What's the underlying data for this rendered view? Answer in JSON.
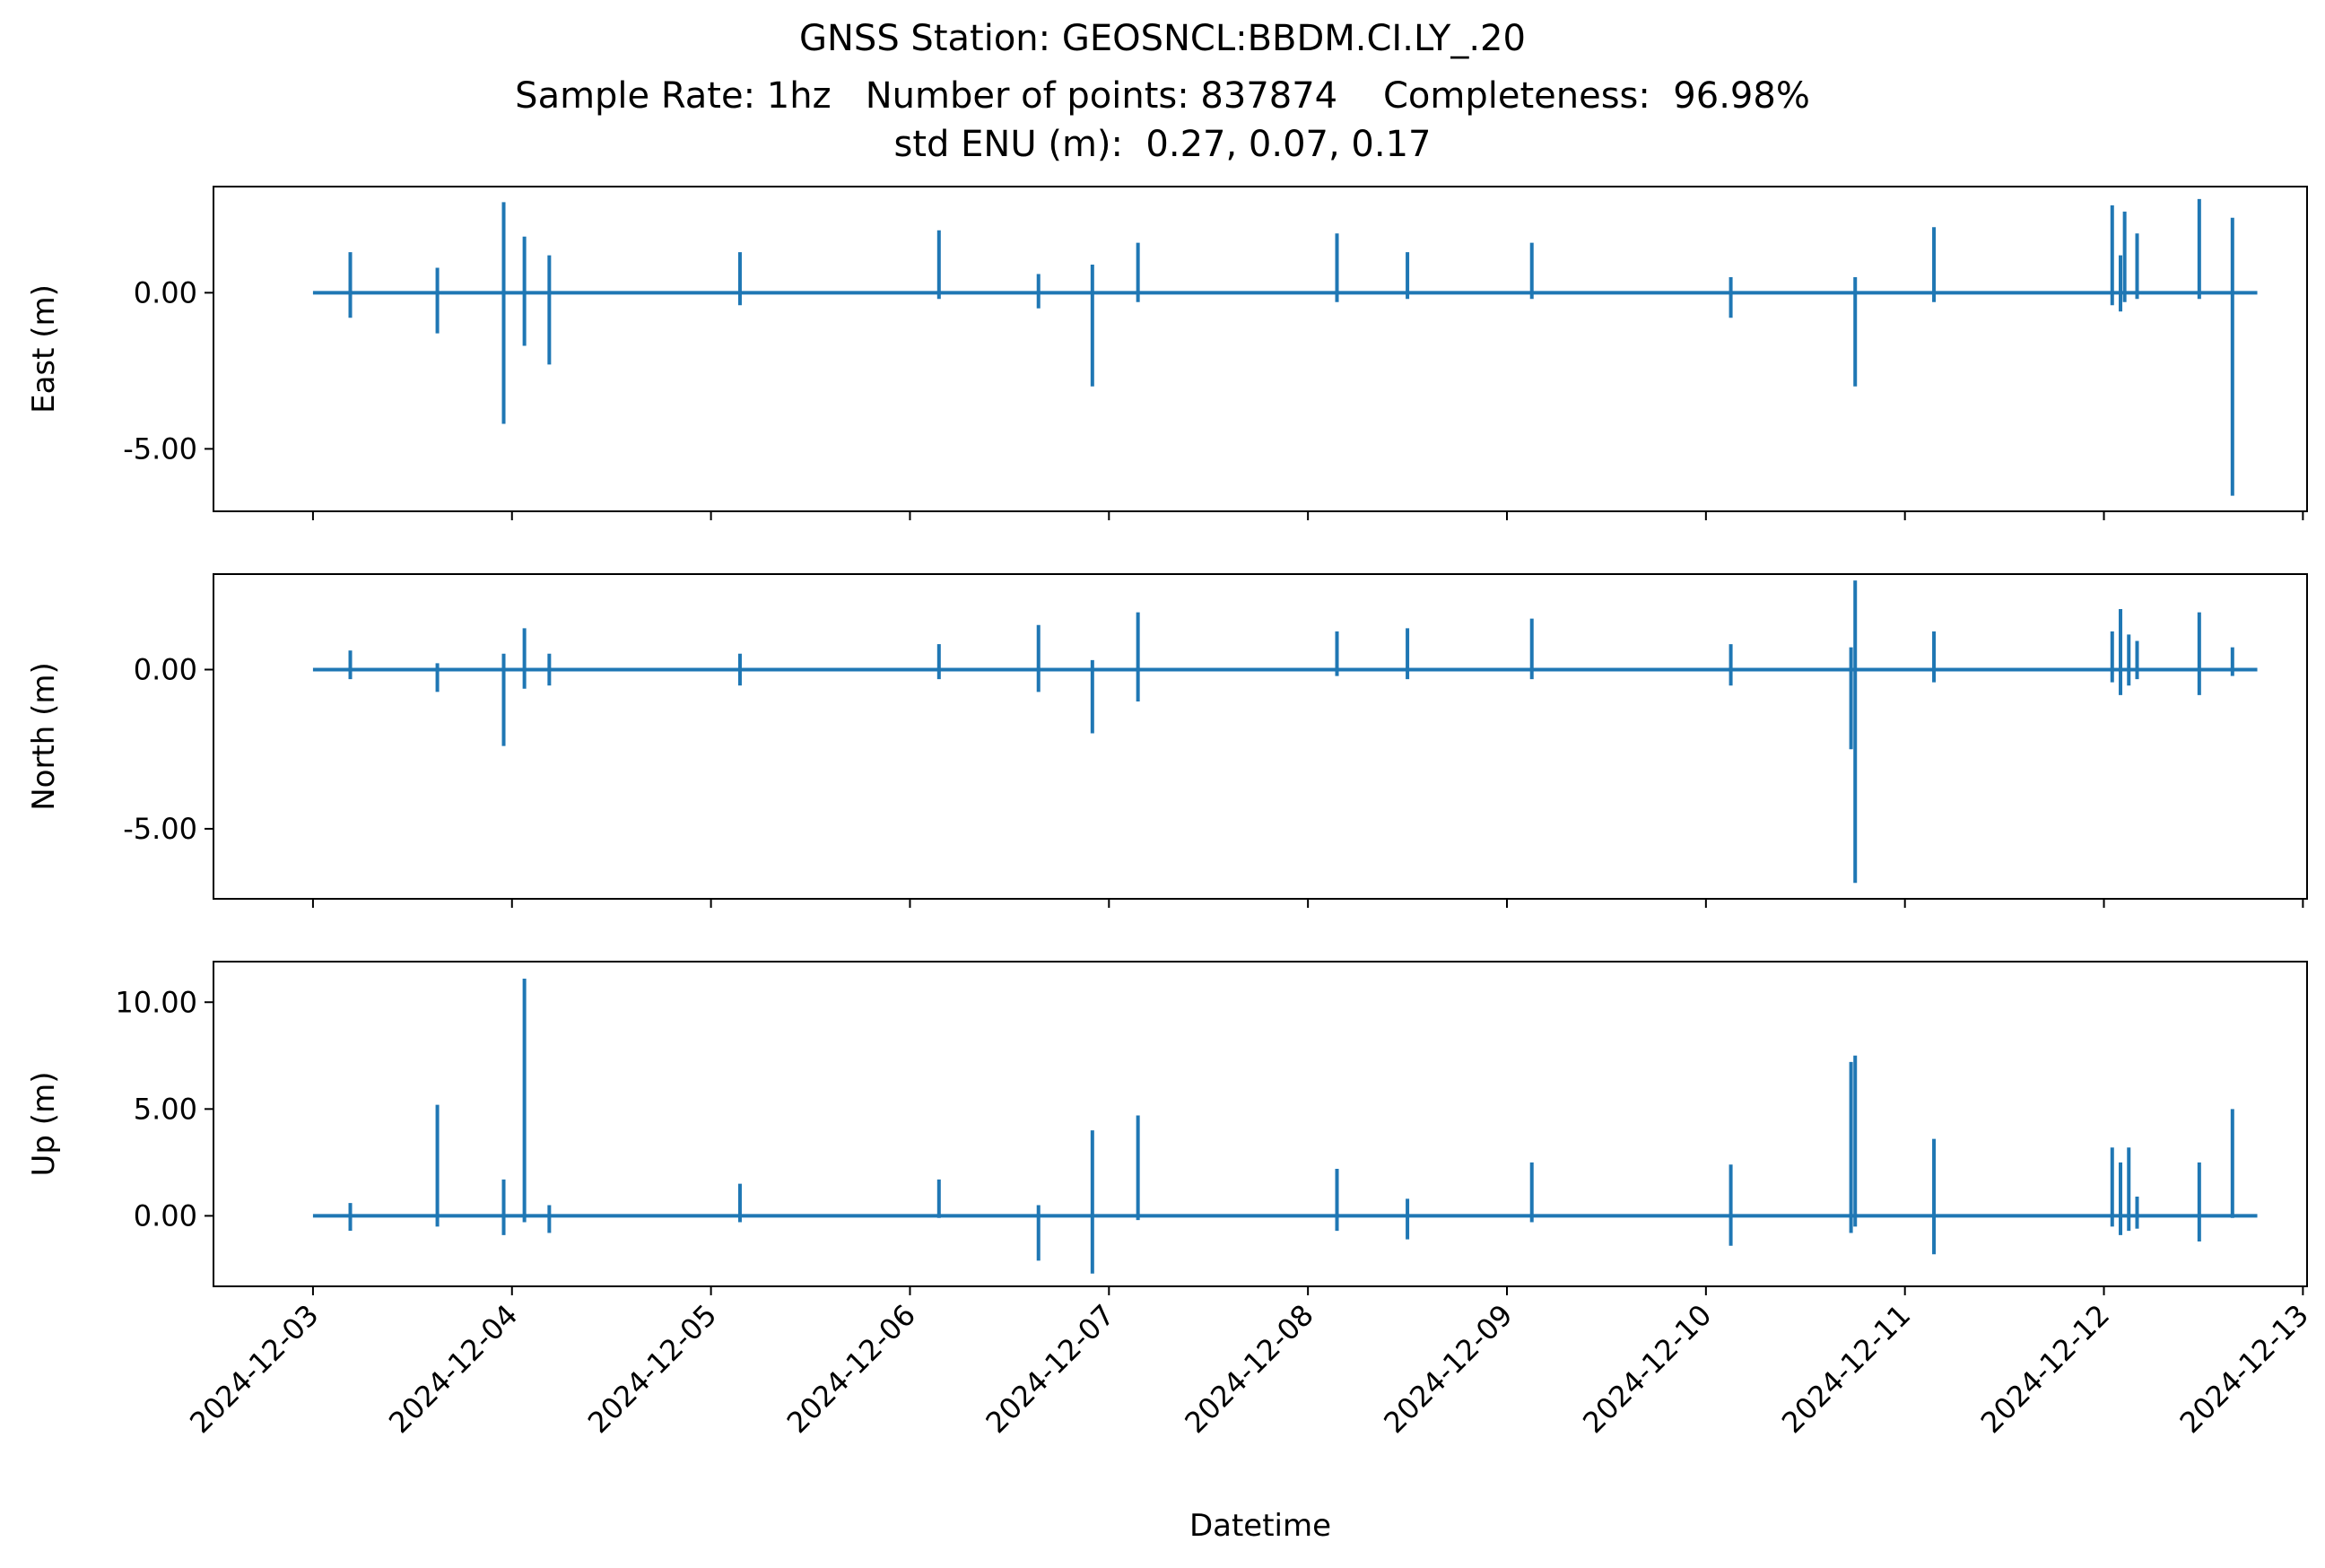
{
  "title": {
    "line1": "GNSS Station: GEOSNCL:BBDM.CI.LY_.20",
    "line2": "Sample Rate: 1hz   Number of points: 837874    Completeness:  96.98%",
    "line3": "std ENU (m):  0.27, 0.07, 0.17"
  },
  "colors": {
    "series": "#1f77b4",
    "axes": "#000000",
    "background": "#ffffff"
  },
  "chart_data": [
    {
      "type": "line",
      "ylabel": "East (m)",
      "xlim": [
        "2024-12-02T12:00",
        "2024-12-13T00:30"
      ],
      "ylim": [
        -7.0,
        3.4
      ],
      "yticks": [
        0.0,
        -5.0
      ],
      "ytick_labels": [
        "0.00",
        "-5.00"
      ],
      "baseline": 0.0,
      "series": [
        {
          "spikes": [
            {
              "x": "2024-12-03T04:30",
              "max": 1.3,
              "min": -0.8
            },
            {
              "x": "2024-12-03T15:00",
              "max": 0.8,
              "min": -1.3
            },
            {
              "x": "2024-12-03T23:00",
              "max": 2.9,
              "min": -4.2
            },
            {
              "x": "2024-12-04T01:30",
              "max": 1.8,
              "min": -1.7
            },
            {
              "x": "2024-12-04T04:30",
              "max": 1.2,
              "min": -2.3
            },
            {
              "x": "2024-12-05T03:30",
              "max": 1.3,
              "min": -0.4
            },
            {
              "x": "2024-12-06T03:30",
              "max": 2.0,
              "min": -0.2
            },
            {
              "x": "2024-12-06T15:30",
              "max": 0.6,
              "min": -0.5
            },
            {
              "x": "2024-12-06T22:00",
              "max": 0.9,
              "min": -3.0
            },
            {
              "x": "2024-12-07T03:30",
              "max": 1.6,
              "min": -0.3
            },
            {
              "x": "2024-12-08T03:30",
              "max": 1.9,
              "min": -0.3
            },
            {
              "x": "2024-12-08T12:00",
              "max": 1.3,
              "min": -0.2
            },
            {
              "x": "2024-12-09T03:00",
              "max": 1.6,
              "min": -0.2
            },
            {
              "x": "2024-12-10T03:00",
              "max": 0.5,
              "min": -0.8
            },
            {
              "x": "2024-12-10T18:00",
              "max": 0.5,
              "min": -3.0
            },
            {
              "x": "2024-12-11T03:30",
              "max": 2.1,
              "min": -0.3
            },
            {
              "x": "2024-12-12T01:00",
              "max": 2.8,
              "min": -0.4
            },
            {
              "x": "2024-12-12T02:00",
              "max": 1.2,
              "min": -0.6
            },
            {
              "x": "2024-12-12T02:30",
              "max": 2.6,
              "min": -0.3
            },
            {
              "x": "2024-12-12T04:00",
              "max": 1.9,
              "min": -0.2
            },
            {
              "x": "2024-12-12T11:30",
              "max": 3.0,
              "min": -0.2
            },
            {
              "x": "2024-12-12T15:30",
              "max": 2.4,
              "min": -6.5
            }
          ]
        }
      ]
    },
    {
      "type": "line",
      "ylabel": "North (m)",
      "xlim": [
        "2024-12-02T12:00",
        "2024-12-13T00:30"
      ],
      "ylim": [
        -7.2,
        3.0
      ],
      "yticks": [
        0.0,
        -5.0
      ],
      "ytick_labels": [
        "0.00",
        "-5.00"
      ],
      "baseline": 0.0,
      "series": [
        {
          "spikes": [
            {
              "x": "2024-12-03T04:30",
              "max": 0.6,
              "min": -0.3
            },
            {
              "x": "2024-12-03T15:00",
              "max": 0.2,
              "min": -0.7
            },
            {
              "x": "2024-12-03T23:00",
              "max": 0.5,
              "min": -2.4
            },
            {
              "x": "2024-12-04T01:30",
              "max": 1.3,
              "min": -0.6
            },
            {
              "x": "2024-12-04T04:30",
              "max": 0.5,
              "min": -0.5
            },
            {
              "x": "2024-12-05T03:30",
              "max": 0.5,
              "min": -0.5
            },
            {
              "x": "2024-12-06T03:30",
              "max": 0.8,
              "min": -0.3
            },
            {
              "x": "2024-12-06T15:30",
              "max": 1.4,
              "min": -0.7
            },
            {
              "x": "2024-12-06T22:00",
              "max": 0.3,
              "min": -2.0
            },
            {
              "x": "2024-12-07T03:30",
              "max": 1.8,
              "min": -1.0
            },
            {
              "x": "2024-12-08T03:30",
              "max": 1.2,
              "min": -0.2
            },
            {
              "x": "2024-12-08T12:00",
              "max": 1.3,
              "min": -0.3
            },
            {
              "x": "2024-12-09T03:00",
              "max": 1.6,
              "min": -0.3
            },
            {
              "x": "2024-12-10T03:00",
              "max": 0.8,
              "min": -0.5
            },
            {
              "x": "2024-12-10T17:30",
              "max": 0.7,
              "min": -2.5
            },
            {
              "x": "2024-12-10T18:00",
              "max": 2.8,
              "min": -6.7
            },
            {
              "x": "2024-12-11T03:30",
              "max": 1.2,
              "min": -0.4
            },
            {
              "x": "2024-12-12T01:00",
              "max": 1.2,
              "min": -0.4
            },
            {
              "x": "2024-12-12T02:00",
              "max": 1.9,
              "min": -0.8
            },
            {
              "x": "2024-12-12T03:00",
              "max": 1.1,
              "min": -0.5
            },
            {
              "x": "2024-12-12T04:00",
              "max": 0.9,
              "min": -0.3
            },
            {
              "x": "2024-12-12T11:30",
              "max": 1.8,
              "min": -0.8
            },
            {
              "x": "2024-12-12T15:30",
              "max": 0.7,
              "min": -0.2
            }
          ]
        }
      ]
    },
    {
      "type": "line",
      "ylabel": "Up (m)",
      "xlabel": "Datetime",
      "xlim": [
        "2024-12-02T12:00",
        "2024-12-13T00:30"
      ],
      "ylim": [
        -3.3,
        11.9
      ],
      "yticks": [
        10.0,
        5.0,
        0.0
      ],
      "ytick_labels": [
        "10.00",
        "5.00",
        "0.00"
      ],
      "xticks": [
        "2024-12-03",
        "2024-12-04",
        "2024-12-05",
        "2024-12-06",
        "2024-12-07",
        "2024-12-08",
        "2024-12-09",
        "2024-12-10",
        "2024-12-11",
        "2024-12-12",
        "2024-12-13"
      ],
      "baseline": 0.0,
      "series": [
        {
          "spikes": [
            {
              "x": "2024-12-03T04:30",
              "max": 0.6,
              "min": -0.7
            },
            {
              "x": "2024-12-03T15:00",
              "max": 5.2,
              "min": -0.5
            },
            {
              "x": "2024-12-03T23:00",
              "max": 1.7,
              "min": -0.9
            },
            {
              "x": "2024-12-04T01:30",
              "max": 11.1,
              "min": -0.3
            },
            {
              "x": "2024-12-04T04:30",
              "max": 0.5,
              "min": -0.8
            },
            {
              "x": "2024-12-05T03:30",
              "max": 1.5,
              "min": -0.3
            },
            {
              "x": "2024-12-06T03:30",
              "max": 1.7,
              "min": -0.1
            },
            {
              "x": "2024-12-06T15:30",
              "max": 0.5,
              "min": -2.1
            },
            {
              "x": "2024-12-06T22:00",
              "max": 4.0,
              "min": -2.7
            },
            {
              "x": "2024-12-07T03:30",
              "max": 4.7,
              "min": -0.2
            },
            {
              "x": "2024-12-08T03:30",
              "max": 2.2,
              "min": -0.7
            },
            {
              "x": "2024-12-08T12:00",
              "max": 0.8,
              "min": -1.1
            },
            {
              "x": "2024-12-09T03:00",
              "max": 2.5,
              "min": -0.3
            },
            {
              "x": "2024-12-10T03:00",
              "max": 2.4,
              "min": -1.4
            },
            {
              "x": "2024-12-10T17:30",
              "max": 7.2,
              "min": -0.8
            },
            {
              "x": "2024-12-10T18:00",
              "max": 7.5,
              "min": -0.5
            },
            {
              "x": "2024-12-11T03:30",
              "max": 3.6,
              "min": -1.8
            },
            {
              "x": "2024-12-12T01:00",
              "max": 3.2,
              "min": -0.5
            },
            {
              "x": "2024-12-12T02:00",
              "max": 2.5,
              "min": -0.9
            },
            {
              "x": "2024-12-12T03:00",
              "max": 3.2,
              "min": -0.7
            },
            {
              "x": "2024-12-12T04:00",
              "max": 0.9,
              "min": -0.6
            },
            {
              "x": "2024-12-12T11:30",
              "max": 2.5,
              "min": -1.2
            },
            {
              "x": "2024-12-12T15:30",
              "max": 5.0,
              "min": -0.1
            }
          ]
        }
      ]
    }
  ]
}
